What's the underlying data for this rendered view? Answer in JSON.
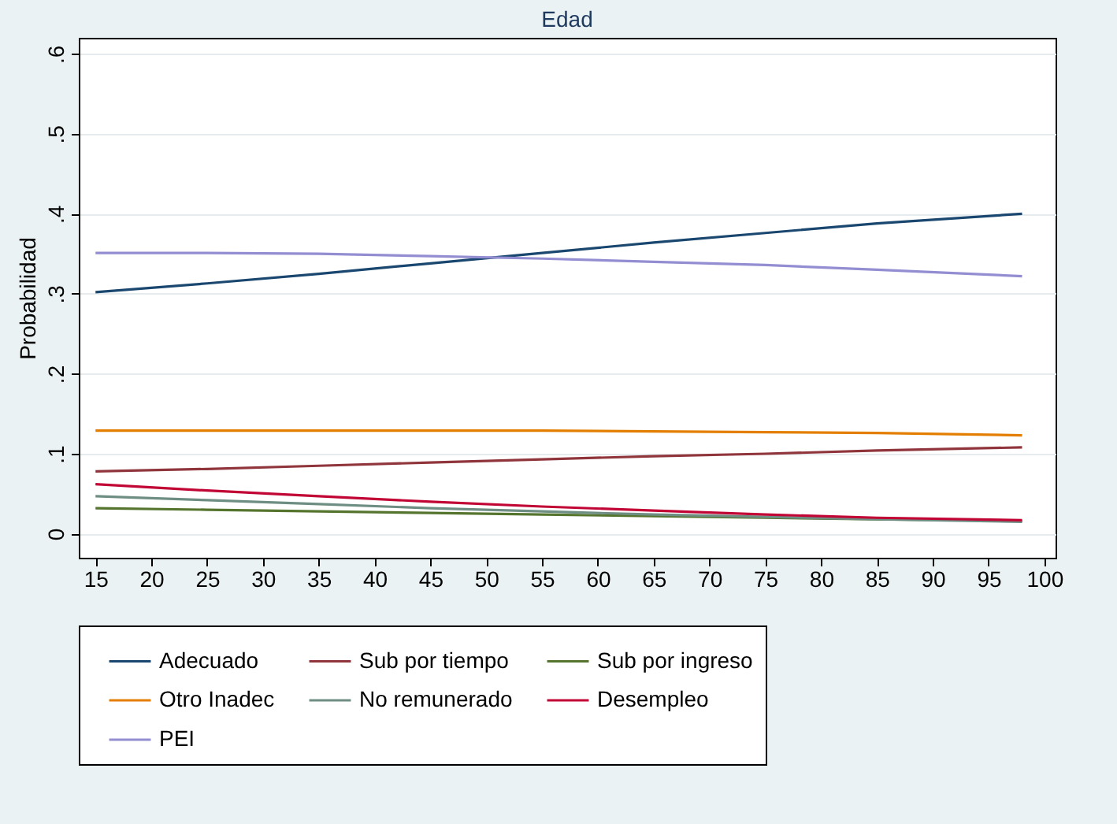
{
  "chart_data": {
    "type": "line",
    "title": "Edad",
    "ylabel": "Probabilidad",
    "x": [
      15,
      25,
      35,
      45,
      55,
      65,
      75,
      85,
      98
    ],
    "xlim": [
      13.5,
      101
    ],
    "xticks": [
      15,
      20,
      25,
      30,
      35,
      40,
      45,
      50,
      55,
      60,
      65,
      70,
      75,
      80,
      85,
      90,
      95,
      100
    ],
    "ylim": [
      -0.03,
      0.62
    ],
    "yticks": [
      {
        "value": 0,
        "label": "0"
      },
      {
        "value": 0.1,
        "label": ".1"
      },
      {
        "value": 0.2,
        "label": ".2"
      },
      {
        "value": 0.3,
        "label": ".3"
      },
      {
        "value": 0.4,
        "label": ".4"
      },
      {
        "value": 0.5,
        "label": ".5"
      },
      {
        "value": 0.6,
        "label": ".6"
      }
    ],
    "grid": "y",
    "legend": "bottom",
    "marker": "none",
    "line_style": "solid",
    "series": [
      {
        "name": "Adecuado",
        "color": "#1a476f",
        "values": [
          0.302,
          0.313,
          0.325,
          0.338,
          0.351,
          0.364,
          0.376,
          0.388,
          0.4
        ]
      },
      {
        "name": "Sub por tiempo",
        "color": "#90353b",
        "values": [
          0.078,
          0.081,
          0.085,
          0.089,
          0.093,
          0.097,
          0.1,
          0.104,
          0.108
        ]
      },
      {
        "name": "Sub por ingreso",
        "color": "#55752f",
        "values": [
          0.032,
          0.03,
          0.028,
          0.026,
          0.024,
          0.022,
          0.02,
          0.018,
          0.016
        ]
      },
      {
        "name": "Otro Inadec",
        "color": "#e37e00",
        "values": [
          0.129,
          0.129,
          0.129,
          0.129,
          0.129,
          0.128,
          0.127,
          0.126,
          0.123
        ]
      },
      {
        "name": "No remunerado",
        "color": "#6e8e84",
        "values": [
          0.047,
          0.042,
          0.037,
          0.032,
          0.028,
          0.024,
          0.021,
          0.018,
          0.015
        ]
      },
      {
        "name": "Desempleo",
        "color": "#c10534",
        "values": [
          0.062,
          0.054,
          0.047,
          0.04,
          0.034,
          0.029,
          0.024,
          0.02,
          0.017
        ]
      },
      {
        "name": "PEI",
        "color": "#938dd2",
        "values": [
          0.351,
          0.351,
          0.35,
          0.347,
          0.344,
          0.34,
          0.336,
          0.33,
          0.322
        ]
      }
    ]
  }
}
